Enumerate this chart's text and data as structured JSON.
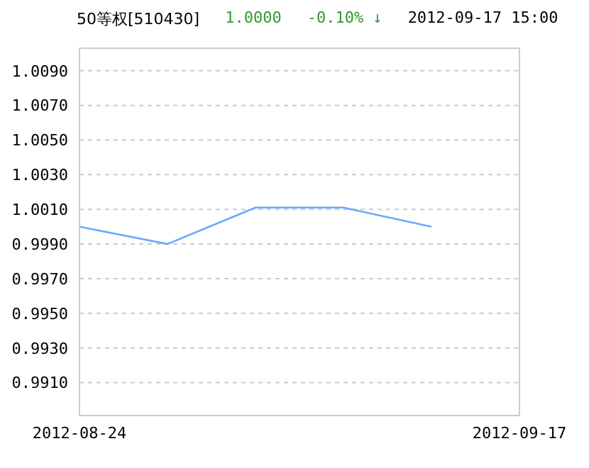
{
  "chart_data": {
    "type": "line",
    "title": "50等权[510430]",
    "annotations": [
      "1.0000",
      "-0.10% ↓",
      "2012-09-17 15:00"
    ],
    "categories": [
      "2012-08-24",
      null,
      null,
      null,
      null,
      "2012-09-17"
    ],
    "series": [
      {
        "color": "#66aaff",
        "values": [
          1.0,
          0.999,
          1.0011,
          1.0011,
          1.0,
          null
        ]
      }
    ],
    "ylim": [
      0.9891,
      1.0103
    ],
    "yticks": [
      {
        "value": 0.991,
        "label": "0.9910"
      },
      {
        "value": 0.993,
        "label": "0.9930"
      },
      {
        "value": 0.995,
        "label": "0.9950"
      },
      {
        "value": 0.997,
        "label": "0.9970"
      },
      {
        "value": 0.999,
        "label": "0.9990"
      },
      {
        "value": 1.001,
        "label": "1.0010"
      },
      {
        "value": 1.003,
        "label": "1.0030"
      },
      {
        "value": 1.005,
        "label": "1.0050"
      },
      {
        "value": 1.007,
        "label": "1.0070"
      },
      {
        "value": 1.009,
        "label": "1.0090"
      }
    ],
    "grid": "y",
    "marker": "none",
    "line_style": "solid",
    "legend": false
  }
}
